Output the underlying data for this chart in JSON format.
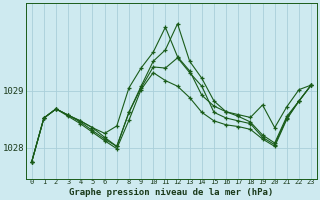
{
  "title": "Graphe pression niveau de la mer (hPa)",
  "background_color": "#ceeaf0",
  "line_color": "#1a5c1a",
  "grid_color": "#aacfda",
  "y_ticks": [
    1028,
    1029
  ],
  "ylim": [
    1027.45,
    1030.55
  ],
  "xlim": [
    -0.5,
    23.5
  ],
  "x_labels": [
    "0",
    "1",
    "2",
    "3",
    "4",
    "5",
    "6",
    "7",
    "8",
    "9",
    "10",
    "11",
    "12",
    "13",
    "14",
    "15",
    "16",
    "17",
    "18",
    "19",
    "20",
    "21",
    "22",
    "23"
  ],
  "series": [
    [
      1027.75,
      1028.52,
      1028.68,
      1028.57,
      1028.47,
      1028.35,
      1028.25,
      1028.38,
      1029.05,
      1029.4,
      1029.68,
      1030.12,
      1029.6,
      1029.35,
      1028.92,
      1028.73,
      1028.63,
      1028.58,
      1028.53,
      1028.75,
      1028.35,
      1028.72,
      1029.02,
      1029.1
    ],
    [
      1027.75,
      1028.52,
      1028.68,
      1028.57,
      1028.47,
      1028.35,
      1028.18,
      1028.02,
      1028.62,
      1029.08,
      1029.52,
      1029.72,
      1030.18,
      1029.52,
      1029.22,
      1028.82,
      1028.63,
      1028.55,
      1028.45,
      1028.22,
      1028.08,
      1028.55,
      1028.82,
      1029.1
    ],
    [
      1027.75,
      1028.52,
      1028.68,
      1028.57,
      1028.45,
      1028.3,
      1028.15,
      1028.02,
      1028.62,
      1029.05,
      1029.42,
      1029.4,
      1029.58,
      1029.32,
      1029.08,
      1028.62,
      1028.52,
      1028.47,
      1028.42,
      1028.18,
      1028.05,
      1028.52,
      1028.82,
      1029.1
    ],
    [
      1027.75,
      1028.52,
      1028.68,
      1028.55,
      1028.42,
      1028.27,
      1028.12,
      1027.98,
      1028.48,
      1029.02,
      1029.32,
      1029.18,
      1029.08,
      1028.88,
      1028.62,
      1028.47,
      1028.4,
      1028.37,
      1028.32,
      1028.15,
      1028.02,
      1028.5,
      1028.82,
      1029.1
    ]
  ]
}
